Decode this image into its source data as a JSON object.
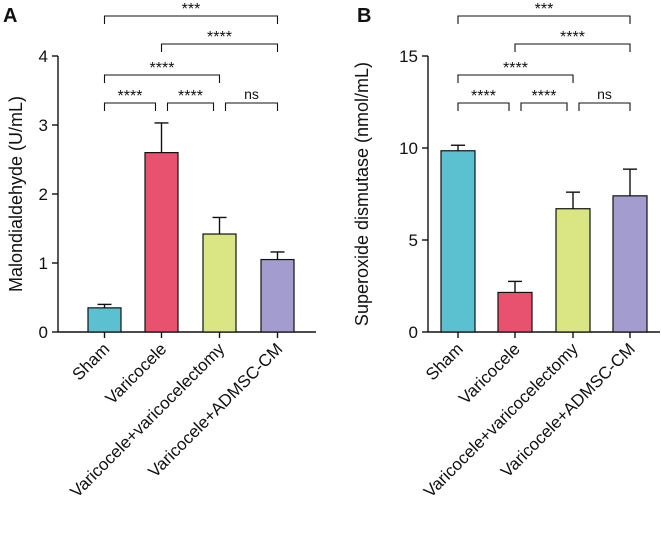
{
  "chart_data": [
    {
      "type": "bar",
      "panel": "A",
      "title": "",
      "xlabel": "",
      "ylabel": "Malondialdehyde (U/mL)",
      "ylim": [
        0,
        4
      ],
      "yticks": [
        0,
        1,
        2,
        3,
        4
      ],
      "categories": [
        "Sham",
        "Varicocele",
        "Varicocele+varicocelectomy",
        "Varicocele+ADMSC-CM"
      ],
      "values": [
        0.35,
        2.6,
        1.42,
        1.05
      ],
      "errors": [
        0.05,
        0.43,
        0.24,
        0.11
      ],
      "colors": [
        "#5BC1D1",
        "#E9526F",
        "#D9E683",
        "#A39DCF"
      ],
      "significance": [
        {
          "from": 0,
          "to": 3,
          "label": "***"
        },
        {
          "from": 1,
          "to": 3,
          "label": "****"
        },
        {
          "from": 0,
          "to": 2,
          "label": "****"
        },
        {
          "from": 0,
          "to": 1,
          "label": "****"
        },
        {
          "from": 1,
          "to": 2,
          "label": "****"
        },
        {
          "from": 2,
          "to": 3,
          "label": "ns"
        }
      ]
    },
    {
      "type": "bar",
      "panel": "B",
      "title": "",
      "xlabel": "",
      "ylabel": "Superoxide dismutase (nmol/mL)",
      "ylim": [
        0,
        15
      ],
      "yticks": [
        0,
        5,
        10,
        15
      ],
      "categories": [
        "Sham",
        "Varicocele",
        "Varicocele+varicocelectomy",
        "Varicocele+ADMSC-CM"
      ],
      "values": [
        9.85,
        2.15,
        6.7,
        7.4
      ],
      "errors": [
        0.3,
        0.6,
        0.9,
        1.45
      ],
      "colors": [
        "#5BC1D1",
        "#E9526F",
        "#D9E683",
        "#A39DCF"
      ],
      "significance": [
        {
          "from": 0,
          "to": 3,
          "label": "***"
        },
        {
          "from": 1,
          "to": 3,
          "label": "****"
        },
        {
          "from": 0,
          "to": 2,
          "label": "****"
        },
        {
          "from": 0,
          "to": 1,
          "label": "****"
        },
        {
          "from": 1,
          "to": 2,
          "label": "****"
        },
        {
          "from": 2,
          "to": 3,
          "label": "ns"
        }
      ]
    }
  ]
}
